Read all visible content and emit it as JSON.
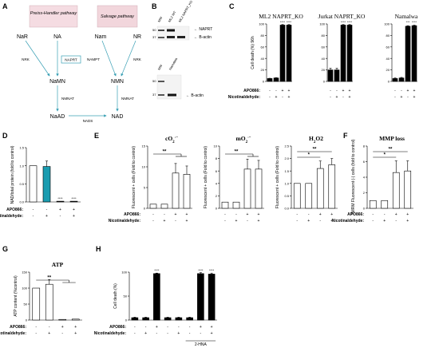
{
  "panel_labels": [
    "A",
    "B",
    "C",
    "D",
    "E",
    "F",
    "G",
    "H"
  ],
  "A": {
    "preiss_handler": "Preiss-Handler pathway",
    "salvage": "Salvage pathway",
    "nodes": {
      "NaR": "NaR",
      "NA": "NA",
      "Nam": "Nam",
      "NR": "NR",
      "NaMN": "NaMN",
      "NMN": "NMN",
      "NaAD": "NaAD",
      "NAD": "NAD"
    },
    "enzymes": {
      "NRK_left": "NRK",
      "NAPRT": "NAPRT",
      "NAMPT": "NAMPT",
      "NRK_right": "NRK",
      "NMNAT_left": "NMNAT",
      "NMNAT_right": "NMNAT",
      "NADS": "NADS"
    },
    "colors": {
      "preiss_bg": "#f5dce2",
      "salvage_bg": "#f2d6dc",
      "arrow": "#3aa0b5"
    }
  },
  "B": {
    "lanes_top": [
      "MW",
      "ML2 WT",
      "ML2 NAPRT_KO"
    ],
    "lanes_bottom": [
      "MW",
      "Namalwa"
    ],
    "markers_top": [
      "50",
      "37"
    ],
    "markers_bottom": [
      "50",
      "37"
    ],
    "bands_top": [
      "NAPRT",
      "B-actin"
    ],
    "bands_bottom": [
      "B-actin"
    ]
  },
  "chart_data": [
    {
      "id": "C1",
      "type": "bar",
      "title": "ML2 NAPRT_KO",
      "ylabel": "Cell death (%) 96h",
      "ylim": [
        0,
        100
      ],
      "yticks": [
        "0",
        "20",
        "40",
        "60",
        "80",
        "100"
      ],
      "values": [
        5,
        6,
        98,
        98
      ],
      "errors": [
        0.5,
        0.5,
        1,
        1
      ],
      "colors": [
        "#000000",
        "#000000",
        "#000000",
        "#000000"
      ],
      "sig": [
        "",
        "",
        "****",
        "****"
      ]
    },
    {
      "id": "C2",
      "type": "bar",
      "title": "Jurkat NAPRT_KO",
      "ylabel": "",
      "ylim": [
        0,
        100
      ],
      "yticks": [
        "0",
        "20",
        "40",
        "60",
        "80",
        "100"
      ],
      "values": [
        20,
        20,
        98,
        98
      ],
      "errors": [
        3,
        3,
        1,
        1
      ],
      "colors": [
        "#000000",
        "#000000",
        "#000000",
        "#000000"
      ],
      "sig": [
        "",
        "",
        "****",
        "****"
      ]
    },
    {
      "id": "C3",
      "type": "bar",
      "title": "Namalwa",
      "ylabel": "",
      "ylim": [
        0,
        100
      ],
      "yticks": [
        "0",
        "20",
        "40",
        "60",
        "80",
        "100"
      ],
      "values": [
        5,
        6,
        96,
        97
      ],
      "errors": [
        1,
        1,
        1,
        1
      ],
      "colors": [
        "#000000",
        "#000000",
        "#000000",
        "#000000"
      ],
      "sig": [
        "",
        "",
        "***",
        "****"
      ]
    },
    {
      "id": "D",
      "type": "bar",
      "title": "",
      "ylabel": "NAD/total protein (fold to control)",
      "ylim": [
        0,
        1.5
      ],
      "yticks": [
        "0.0",
        "0.5",
        "1.0",
        "1.5"
      ],
      "values": [
        1.0,
        0.98,
        0.02,
        0.02
      ],
      "errors": [
        0,
        0.15,
        0,
        0
      ],
      "colors": [
        "#ffffff",
        "#1a9cb0",
        "#000000",
        "#000000"
      ],
      "sig": [
        "",
        "",
        "****",
        "****"
      ]
    },
    {
      "id": "E1",
      "type": "bar",
      "title": "cO2·-",
      "ylabel": "Fluorescent + cells (Fold to control)",
      "ylim": [
        0,
        15
      ],
      "yticks": [
        "0",
        "5",
        "10",
        "15"
      ],
      "values": [
        1,
        1,
        8.5,
        8.2
      ],
      "errors": [
        0,
        0,
        2.3,
        2
      ],
      "colors": [
        "#ffffff",
        "#ffffff",
        "#ffffff",
        "#ffffff"
      ],
      "sig": [
        "**"
      ]
    },
    {
      "id": "E2",
      "type": "bar",
      "title": "mO2·-",
      "ylabel": "Fluorescent + cells (Fold to control)",
      "ylim": [
        0,
        10
      ],
      "yticks": [
        "0",
        "2",
        "4",
        "6",
        "8",
        "10"
      ],
      "values": [
        1,
        1,
        6.3,
        6.3
      ],
      "errors": [
        0,
        0,
        1.6,
        1.4
      ],
      "colors": [
        "#ffffff",
        "#ffffff",
        "#ffffff",
        "#ffffff"
      ],
      "sig": [
        "**"
      ]
    },
    {
      "id": "E3",
      "type": "bar",
      "title": "H2O2",
      "ylabel": "Fluorescent + cells (Fold to control)",
      "ylim": [
        0,
        2.5
      ],
      "yticks": [
        "0.0",
        "0.5",
        "1.0",
        "1.5",
        "2.0",
        "2.5"
      ],
      "values": [
        1,
        1,
        1.6,
        1.75
      ],
      "errors": [
        0,
        0,
        0.3,
        0.25
      ],
      "colors": [
        "#ffffff",
        "#ffffff",
        "#ffffff",
        "#ffffff"
      ],
      "sig": [
        "*",
        "**"
      ]
    },
    {
      "id": "F",
      "type": "bar",
      "title": "MMP loss",
      "ylabel": "TMRM Fluorescent (-) cells (fold to control)",
      "ylim": [
        0,
        8
      ],
      "yticks": [
        "0",
        "2",
        "4",
        "6",
        "8"
      ],
      "values": [
        1,
        1,
        4.6,
        4.8
      ],
      "errors": [
        0,
        0,
        1.5,
        1.3
      ],
      "colors": [
        "#ffffff",
        "#ffffff",
        "#ffffff",
        "#ffffff"
      ],
      "sig": [
        "*",
        "**"
      ]
    },
    {
      "id": "G",
      "type": "bar",
      "title": "ATP",
      "ylabel": "ATP content (%control)",
      "ylim": [
        0,
        150
      ],
      "yticks": [
        "0",
        "50",
        "100",
        "150"
      ],
      "values": [
        100,
        112,
        2,
        3
      ],
      "errors": [
        0,
        15,
        0,
        0
      ],
      "colors": [
        "#ffffff",
        "#ffffff",
        "#ffffff",
        "#ffffff"
      ],
      "sig": [
        "**"
      ]
    },
    {
      "id": "H",
      "type": "bar",
      "title": "",
      "ylabel": "Cell death (%)",
      "ylim": [
        0,
        100
      ],
      "yticks": [
        "0",
        "50",
        "100"
      ],
      "values": [
        5,
        5,
        97,
        5,
        5,
        5,
        97,
        96
      ],
      "errors": [
        1,
        1,
        1,
        1,
        1,
        1,
        2,
        2
      ],
      "colors": [
        "#000000",
        "#000000",
        "#000000",
        "#000000",
        "#000000",
        "#000000",
        "#000000",
        "#000000"
      ],
      "sig": [
        "",
        "",
        "****",
        "",
        "",
        "",
        "****",
        "****"
      ],
      "group_label": "2-HNA"
    }
  ],
  "treatments": {
    "apo_label": "APO866:",
    "nic_label": "Nicotinaldehyde:",
    "apo4": [
      "-",
      "-",
      "+",
      "+"
    ],
    "nic4": [
      "-",
      "+",
      "-",
      "+"
    ],
    "apo8": [
      "-",
      "-",
      "+",
      "-",
      "-",
      "-",
      "+",
      "+"
    ],
    "nic8": [
      "-",
      "+",
      "-",
      "-",
      "+",
      "-",
      "-",
      "+"
    ]
  }
}
